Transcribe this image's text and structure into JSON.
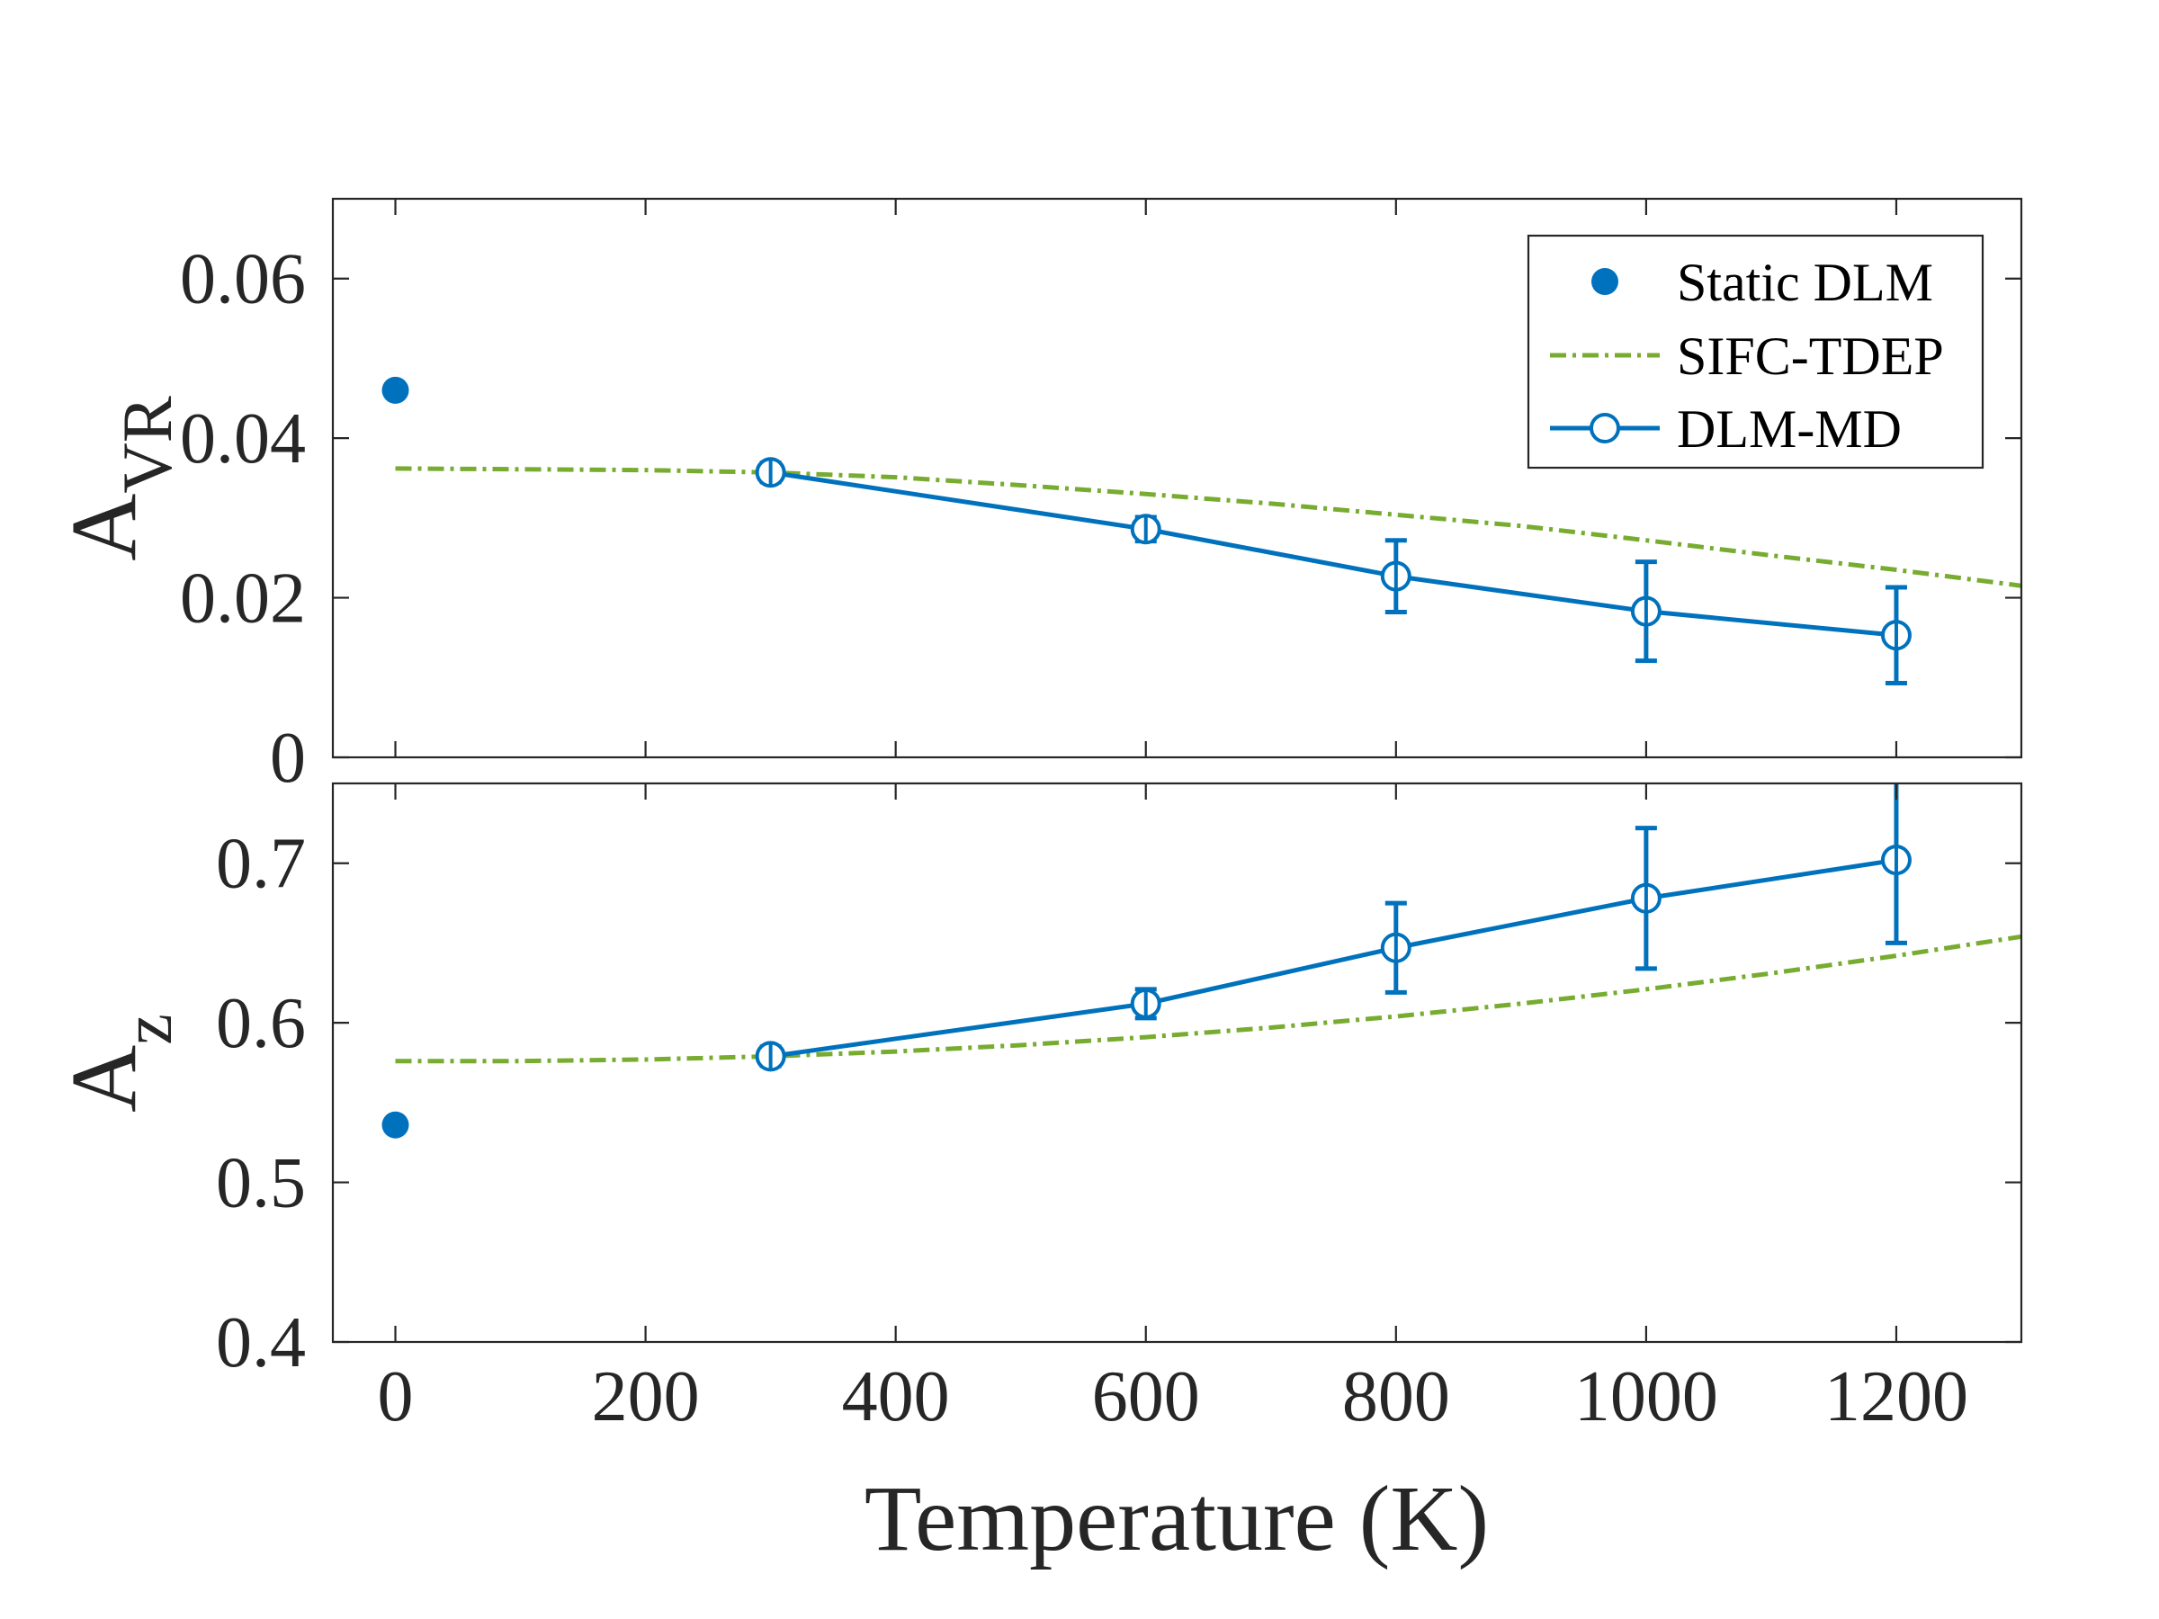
{
  "colors": {
    "blue": "#0072bd",
    "green": "#77ac30",
    "axis": "#262626"
  },
  "chart_data": [
    {
      "type": "line",
      "panel": "top",
      "ylabel": {
        "main": "A",
        "sub": "VR"
      },
      "xlim": [
        -50,
        1300
      ],
      "ylim": [
        0,
        0.07
      ],
      "xticks": [
        0,
        200,
        400,
        600,
        800,
        1000,
        1200
      ],
      "yticks": [
        0,
        0.02,
        0.04,
        0.06
      ],
      "ytick_labels": [
        "0",
        "0.02",
        "0.04",
        "0.06"
      ],
      "series": [
        {
          "name": "Static DLM",
          "style": "filled-marker",
          "x": [
            0
          ],
          "y": [
            0.046
          ]
        },
        {
          "name": "SIFC-TDEP",
          "style": "dash-dot",
          "x": [
            0,
            100,
            200,
            300,
            400,
            500,
            600,
            700,
            800,
            900,
            1000,
            1100,
            1200,
            1300
          ],
          "y": [
            0.0362,
            0.0361,
            0.036,
            0.0357,
            0.0351,
            0.0341,
            0.033,
            0.0318,
            0.0304,
            0.029,
            0.0272,
            0.0253,
            0.0235,
            0.0215
          ]
        },
        {
          "name": "DLM-MD",
          "style": "line-open-marker",
          "x": [
            300,
            600,
            800,
            1000,
            1200
          ],
          "y": [
            0.0357,
            0.0286,
            0.0227,
            0.0183,
            0.0153
          ],
          "err": [
            0.0012,
            0.0015,
            0.0045,
            0.0062,
            0.006
          ]
        }
      ],
      "legend": {
        "position": "top-right",
        "entries": [
          "Static DLM",
          "SIFC-TDEP",
          "DLM-MD"
        ]
      }
    },
    {
      "type": "line",
      "panel": "bottom",
      "ylabel": {
        "main": "A",
        "sub": "z"
      },
      "xlabel": "Temperature (K)",
      "xlim": [
        -50,
        1300
      ],
      "ylim": [
        0.4,
        0.75
      ],
      "xticks": [
        0,
        200,
        400,
        600,
        800,
        1000,
        1200
      ],
      "xtick_labels": [
        "0",
        "200",
        "400",
        "600",
        "800",
        "1000",
        "1200"
      ],
      "yticks": [
        0.4,
        0.5,
        0.6,
        0.7
      ],
      "ytick_labels": [
        "0.4",
        "0.5",
        "0.6",
        "0.7"
      ],
      "series": [
        {
          "name": "Static DLM",
          "style": "filled-marker",
          "x": [
            0
          ],
          "y": [
            0.536
          ]
        },
        {
          "name": "SIFC-TDEP",
          "style": "dash-dot",
          "x": [
            0,
            100,
            200,
            300,
            400,
            500,
            600,
            700,
            800,
            900,
            1000,
            1100,
            1200,
            1300
          ],
          "y": [
            0.576,
            0.576,
            0.577,
            0.579,
            0.582,
            0.586,
            0.591,
            0.597,
            0.604,
            0.612,
            0.621,
            0.631,
            0.642,
            0.654
          ]
        },
        {
          "name": "DLM-MD",
          "style": "line-open-marker",
          "x": [
            300,
            600,
            800,
            1000,
            1200
          ],
          "y": [
            0.579,
            0.612,
            0.647,
            0.678,
            0.702
          ],
          "err": [
            0.006,
            0.009,
            0.028,
            0.044,
            0.052
          ]
        }
      ]
    }
  ]
}
